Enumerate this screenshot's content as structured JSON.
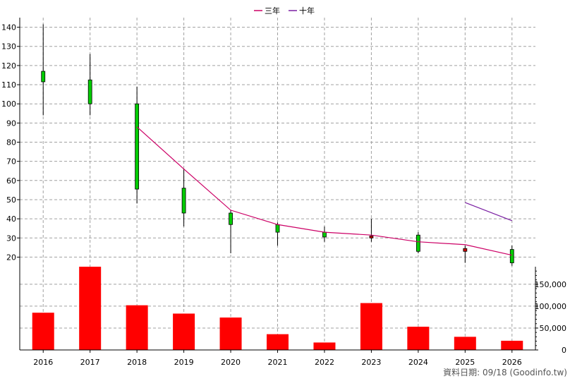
{
  "chart_data": {
    "type": "candlestick+line+bar",
    "categories": [
      "2016",
      "2017",
      "2018",
      "2019",
      "2020",
      "2021",
      "2022",
      "2023",
      "2024",
      "2025",
      "2026"
    ],
    "legend": {
      "placement": "top-center",
      "items": [
        {
          "name": "三年",
          "color": "#cc0066"
        },
        {
          "name": "十年",
          "color": "#7a1fa2"
        }
      ]
    },
    "price_axis": {
      "ticks": [
        "140",
        "130",
        "120",
        "110",
        "100",
        "90",
        "80",
        "70",
        "60",
        "50",
        "40",
        "30",
        "20"
      ],
      "ylim": [
        15,
        145
      ]
    },
    "candles": [
      {
        "year": "2016",
        "open": 111.5,
        "close": 117,
        "high": 141.5,
        "low": 94,
        "color": "#00cc00"
      },
      {
        "year": "2017",
        "open": 100,
        "close": 112.5,
        "high": 126,
        "low": 94,
        "color": "#00cc00"
      },
      {
        "year": "2018",
        "open": 55.5,
        "close": 100,
        "high": 109,
        "low": 48,
        "color": "#00cc00"
      },
      {
        "year": "2019",
        "open": 43,
        "close": 56,
        "high": 66,
        "low": 36,
        "color": "#00cc00"
      },
      {
        "year": "2020",
        "open": 37,
        "close": 43,
        "high": 44.5,
        "low": 22,
        "color": "#00cc00"
      },
      {
        "year": "2021",
        "open": 33,
        "close": 37,
        "high": 38,
        "low": 26,
        "color": "#00cc00"
      },
      {
        "year": "2022",
        "open": 30.5,
        "close": 33,
        "high": 36,
        "low": 28,
        "color": "#00cc00"
      },
      {
        "year": "2023",
        "open": 31,
        "close": 30,
        "high": 40,
        "low": 28,
        "color": "#cc0000"
      },
      {
        "year": "2024",
        "open": 23,
        "close": 31.5,
        "high": 33,
        "low": 22,
        "color": "#00cc00"
      },
      {
        "year": "2025",
        "open": 23,
        "close": 24.5,
        "high": 26,
        "low": 17,
        "color": "#cc0000"
      },
      {
        "year": "2026",
        "open": 17,
        "close": 24,
        "high": 26,
        "low": 15.5,
        "color": "#00cc00"
      }
    ],
    "series": [
      {
        "name": "三年",
        "x": [
          "2018",
          "2019",
          "2020",
          "2021",
          "2022",
          "2023",
          "2024",
          "2025",
          "2026"
        ],
        "values": [
          88,
          66,
          44.5,
          37,
          33,
          31.5,
          28,
          26.5,
          21
        ]
      },
      {
        "name": "十年",
        "x": [
          "2025",
          "2026"
        ],
        "values": [
          48.5,
          39
        ]
      }
    ],
    "volume_axis": {
      "ticks": [
        "150,000",
        "100,000",
        "50,000",
        "0"
      ],
      "ylim": [
        0,
        190000
      ]
    },
    "volume": [
      {
        "year": "2016",
        "value": 85000
      },
      {
        "year": "2017",
        "value": 192000
      },
      {
        "year": "2018",
        "value": 102000
      },
      {
        "year": "2019",
        "value": 83000
      },
      {
        "year": "2020",
        "value": 74000
      },
      {
        "year": "2021",
        "value": 36000
      },
      {
        "year": "2022",
        "value": 17000
      },
      {
        "year": "2023",
        "value": 107000
      },
      {
        "year": "2024",
        "value": 53000
      },
      {
        "year": "2025",
        "value": 30000
      },
      {
        "year": "2026",
        "value": 21000
      }
    ],
    "volume_color": "#ff0000",
    "grid": true
  },
  "footer": {
    "source": "資料日期: 09/18  (Goodinfo.tw)"
  }
}
